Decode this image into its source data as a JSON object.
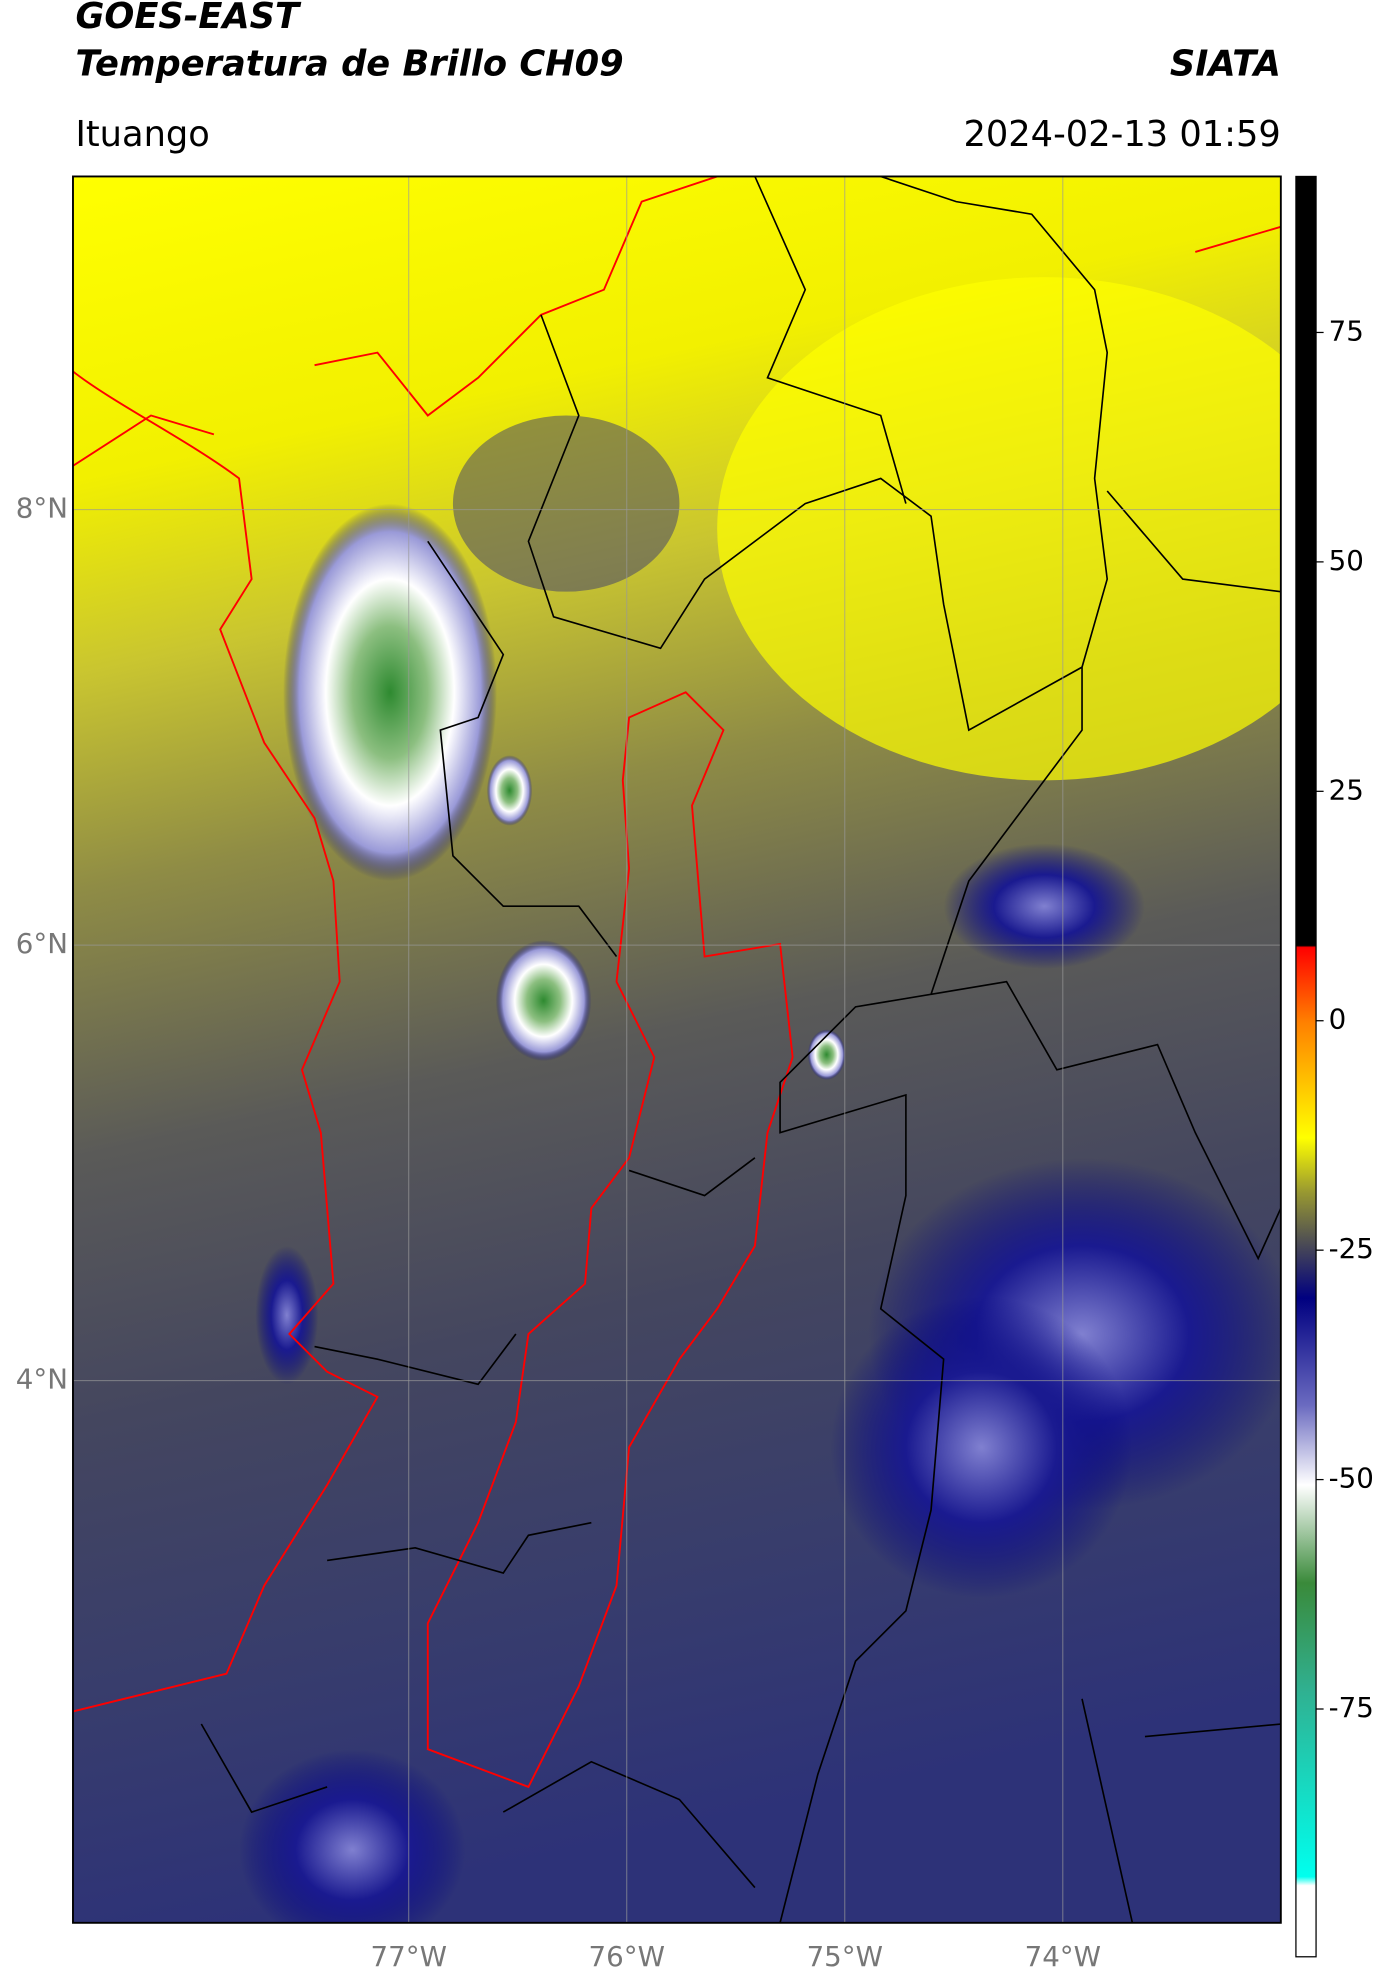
{
  "header": {
    "satellite": "GOES-EAST",
    "product": "Temperatura de Brillo CH09",
    "brand": "SIATA",
    "location": "Ituango",
    "datetime": "2024-02-13 01:59"
  },
  "map": {
    "lonlim": [
      -78.54,
      -73.0
    ],
    "latlim": [
      1.51,
      9.53
    ],
    "lon_ticks": [
      {
        "value": -77,
        "label": "77°W"
      },
      {
        "value": -76,
        "label": "76°W"
      },
      {
        "value": -75,
        "label": "75°W"
      },
      {
        "value": -74,
        "label": "74°W"
      }
    ],
    "lat_ticks": [
      {
        "value": 8,
        "label": "8°N"
      },
      {
        "value": 6,
        "label": "6°N"
      },
      {
        "value": 4,
        "label": "4°N"
      }
    ]
  },
  "colorbar": {
    "lim": [
      -102,
      92
    ],
    "ticks": [
      75,
      50,
      25,
      0,
      -25,
      -50,
      -75
    ]
  }
}
